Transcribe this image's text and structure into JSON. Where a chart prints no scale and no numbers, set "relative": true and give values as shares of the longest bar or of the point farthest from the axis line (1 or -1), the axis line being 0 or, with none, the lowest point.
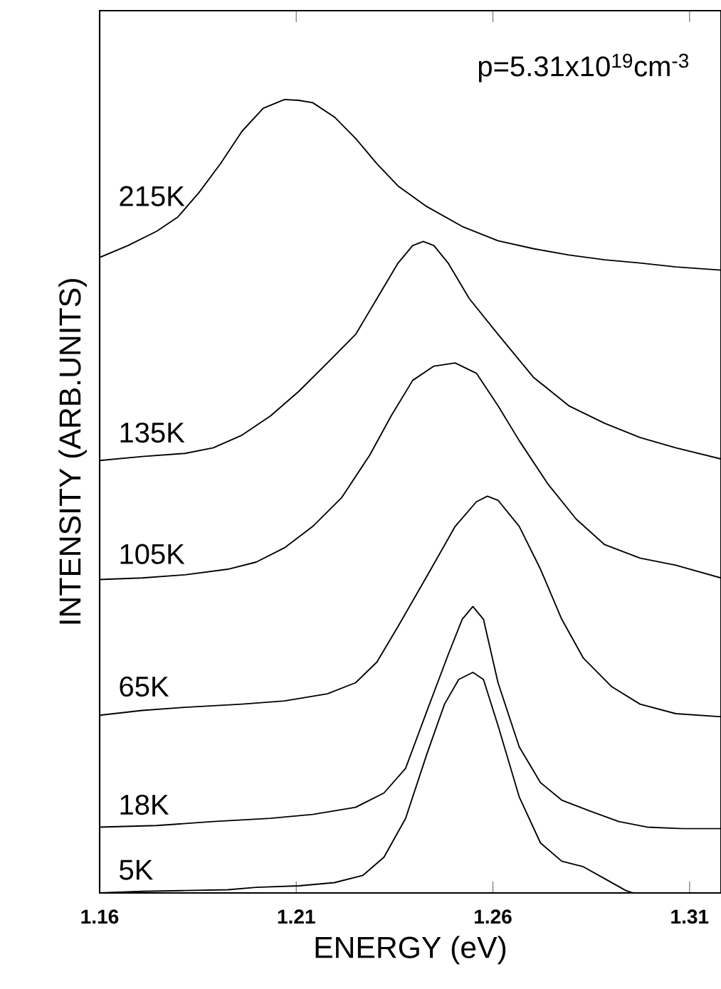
{
  "chart_data": {
    "type": "line",
    "relative": true,
    "xlabel": "ENERGY (eV)",
    "ylabel": "INTENSITY (ARB.UNITS)",
    "xlim": [
      1.16,
      1.318
    ],
    "xticks": [
      1.16,
      1.21,
      1.26,
      1.31
    ],
    "marker": "none",
    "annotations": [
      "p=5.31x10$^{19}$cm$^{-3}$"
    ],
    "series": [
      {
        "name": "215K",
        "color": "#000000",
        "x": [
          1.16,
          1.1672,
          1.1745,
          1.1799,
          1.1853,
          1.1907,
          1.1962,
          1.2016,
          1.207,
          1.2106,
          1.2142,
          1.2197,
          1.2251,
          1.2305,
          1.2359,
          1.2432,
          1.2522,
          1.2613,
          1.2703,
          1.2793,
          1.2884,
          1.2974,
          1.3065,
          1.318
        ],
        "values": [
          0.801,
          0.816,
          0.834,
          0.852,
          0.883,
          0.919,
          0.96,
          0.989,
          1.0,
          0.999,
          0.996,
          0.978,
          0.951,
          0.919,
          0.891,
          0.865,
          0.84,
          0.822,
          0.812,
          0.804,
          0.798,
          0.794,
          0.789,
          0.785
        ]
      },
      {
        "name": "135K",
        "color": "#000000",
        "x": [
          1.16,
          1.1708,
          1.1817,
          1.1889,
          1.1962,
          1.2034,
          1.2106,
          1.2179,
          1.2251,
          1.2305,
          1.2359,
          1.2396,
          1.2423,
          1.245,
          1.2486,
          1.254,
          1.2613,
          1.2703,
          1.2793,
          1.2884,
          1.2974,
          1.3065,
          1.318
        ],
        "values": [
          0.545,
          0.55,
          0.554,
          0.561,
          0.577,
          0.601,
          0.632,
          0.668,
          0.704,
          0.749,
          0.794,
          0.816,
          0.821,
          0.816,
          0.794,
          0.749,
          0.704,
          0.65,
          0.614,
          0.592,
          0.574,
          0.561,
          0.547
        ]
      },
      {
        "name": "105K",
        "color": "#000000",
        "x": [
          1.16,
          1.1708,
          1.1817,
          1.1926,
          1.1998,
          1.207,
          1.2142,
          1.2215,
          1.2287,
          1.2341,
          1.2396,
          1.245,
          1.2504,
          1.2558,
          1.2613,
          1.2667,
          1.2739,
          1.2812,
          1.2884,
          1.2974,
          1.3065,
          1.318
        ],
        "values": [
          0.395,
          0.397,
          0.401,
          0.408,
          0.417,
          0.435,
          0.462,
          0.498,
          0.552,
          0.601,
          0.646,
          0.664,
          0.668,
          0.655,
          0.614,
          0.57,
          0.516,
          0.471,
          0.439,
          0.422,
          0.413,
          0.397
        ]
      },
      {
        "name": "65K",
        "color": "#000000",
        "x": [
          1.16,
          1.1708,
          1.1817,
          1.1962,
          1.207,
          1.2179,
          1.2251,
          1.2305,
          1.2359,
          1.2432,
          1.2504,
          1.2558,
          1.2586,
          1.2613,
          1.2667,
          1.2721,
          1.2775,
          1.283,
          1.2902,
          1.2974,
          1.3065,
          1.318
        ],
        "values": [
          0.224,
          0.23,
          0.234,
          0.238,
          0.242,
          0.251,
          0.265,
          0.291,
          0.336,
          0.399,
          0.462,
          0.493,
          0.5,
          0.495,
          0.462,
          0.408,
          0.345,
          0.296,
          0.26,
          0.238,
          0.226,
          0.222
        ]
      },
      {
        "name": "18K",
        "color": "#000000",
        "x": [
          1.16,
          1.1745,
          1.1889,
          1.2034,
          1.2142,
          1.2251,
          1.2323,
          1.2378,
          1.2432,
          1.2486,
          1.2522,
          1.2549,
          1.2576,
          1.2613,
          1.2667,
          1.2721,
          1.2775,
          1.2848,
          1.292,
          1.2992,
          1.3083,
          1.318
        ],
        "values": [
          0.083,
          0.085,
          0.09,
          0.094,
          0.099,
          0.108,
          0.126,
          0.157,
          0.229,
          0.3,
          0.345,
          0.361,
          0.345,
          0.265,
          0.184,
          0.139,
          0.117,
          0.103,
          0.09,
          0.083,
          0.081,
          0.081
        ]
      },
      {
        "name": "5K",
        "color": "#000000",
        "x": [
          1.16,
          1.1708,
          1.1817,
          1.1926,
          1.1998,
          1.2106,
          1.2197,
          1.2269,
          1.2323,
          1.2378,
          1.2432,
          1.2477,
          1.2513,
          1.2549,
          1.2576,
          1.2613,
          1.2667,
          1.2721,
          1.2775,
          1.283,
          1.2884,
          1.2938,
          1.2956,
          1.318
        ],
        "values": [
          0,
          0.002,
          0.003,
          0.004,
          0.007,
          0.009,
          0.013,
          0.022,
          0.045,
          0.094,
          0.175,
          0.238,
          0.269,
          0.278,
          0.269,
          0.211,
          0.121,
          0.063,
          0.04,
          0.033,
          0.018,
          0.003,
          0,
          0
        ]
      }
    ]
  }
}
